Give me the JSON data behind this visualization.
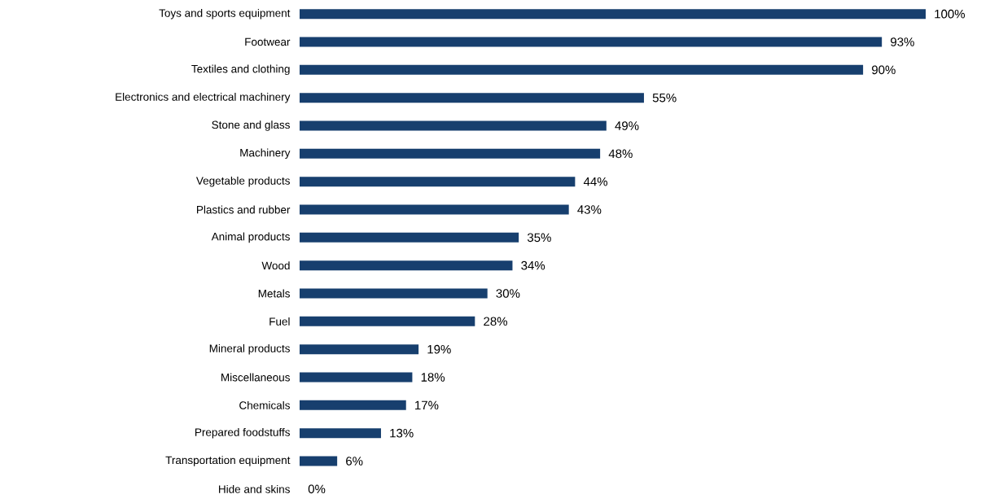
{
  "chart_data": {
    "type": "bar",
    "orientation": "horizontal",
    "color": "#173f6e",
    "categories": [
      "Toys and sports equipment",
      "Footwear",
      "Textiles and clothing",
      "Electronics and electrical machinery",
      "Stone and glass",
      "Machinery",
      "Vegetable products",
      "Plastics and rubber",
      "Animal products",
      "Wood",
      "Metals",
      "Fuel",
      "Mineral products",
      "Miscellaneous",
      "Chemicals",
      "Prepared foodstuffs",
      "Transportation equipment",
      "Hide and skins"
    ],
    "values": [
      100,
      93,
      90,
      55,
      49,
      48,
      44,
      43,
      35,
      34,
      30,
      28,
      19,
      18,
      17,
      13,
      6,
      0
    ],
    "value_labels": [
      "100%",
      "93%",
      "90%",
      "55%",
      "49%",
      "48%",
      "44%",
      "43%",
      "35%",
      "34%",
      "30%",
      "28%",
      "19%",
      "18%",
      "17%",
      "13%",
      "6%",
      "0%"
    ]
  }
}
